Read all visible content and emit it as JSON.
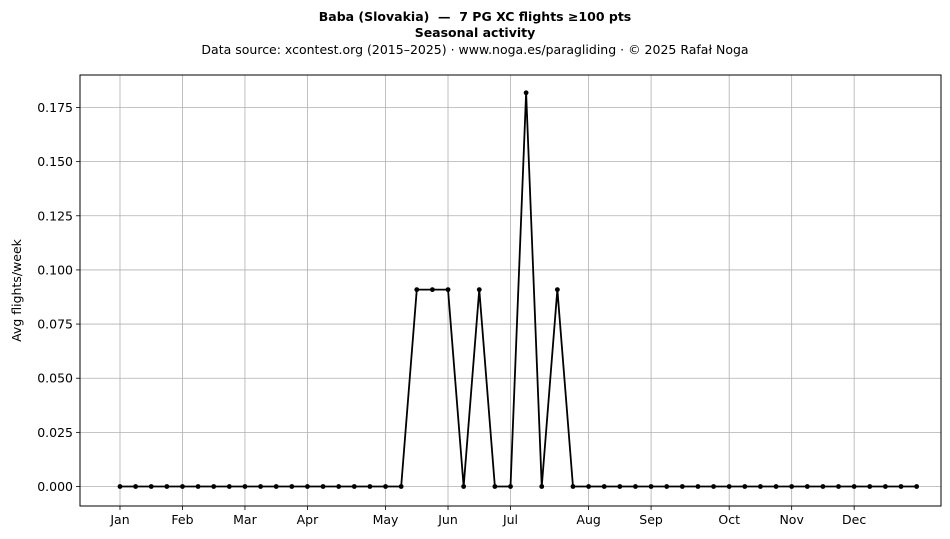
{
  "chart_data": {
    "type": "line",
    "title": "Baba (Slovakia)  —  7 PG XC flights ≥100 pts",
    "subtitle": "Seasonal activity",
    "source_line": "Data source: xcontest.org (2015–2025)  ·  www.noga.es/paragliding  ·  © 2025 Rafał Noga",
    "xlabel": "",
    "ylabel": "Avg flights/week",
    "ylim": [
      -0.009,
      0.19
    ],
    "xlim": [
      -1.56,
      53.56
    ],
    "grid": true,
    "month_labels": [
      "Jan",
      "Feb",
      "Mar",
      "Apr",
      "May",
      "Jun",
      "Jul",
      "Aug",
      "Sep",
      "Oct",
      "Nov",
      "Dec"
    ],
    "month_ticks": [
      1,
      5,
      9,
      13,
      18,
      22,
      26,
      31,
      35,
      40,
      44,
      48
    ],
    "y_ticks": [
      0.0,
      0.025,
      0.05,
      0.075,
      0.1,
      0.125,
      0.15,
      0.175
    ],
    "y_tick_labels": [
      "0.000",
      "0.025",
      "0.050",
      "0.075",
      "0.100",
      "0.125",
      "0.150",
      "0.175"
    ],
    "line_color": "#000000",
    "x": [
      1,
      2,
      3,
      4,
      5,
      6,
      7,
      8,
      9,
      10,
      11,
      12,
      13,
      14,
      15,
      16,
      17,
      18,
      19,
      20,
      21,
      22,
      23,
      24,
      25,
      26,
      27,
      28,
      29,
      30,
      31,
      32,
      33,
      34,
      35,
      36,
      37,
      38,
      39,
      40,
      41,
      42,
      43,
      44,
      45,
      46,
      47,
      48,
      49,
      50,
      51,
      52
    ],
    "values": [
      0,
      0,
      0,
      0,
      0,
      0,
      0,
      0,
      0,
      0,
      0,
      0,
      0,
      0,
      0,
      0,
      0,
      0,
      0,
      0.0909,
      0.0909,
      0.0909,
      0,
      0.0909,
      0,
      0,
      0.1818,
      0,
      0.0909,
      0,
      0,
      0,
      0,
      0,
      0,
      0,
      0,
      0,
      0,
      0,
      0,
      0,
      0,
      0,
      0,
      0,
      0,
      0,
      0,
      0,
      0,
      0
    ]
  }
}
